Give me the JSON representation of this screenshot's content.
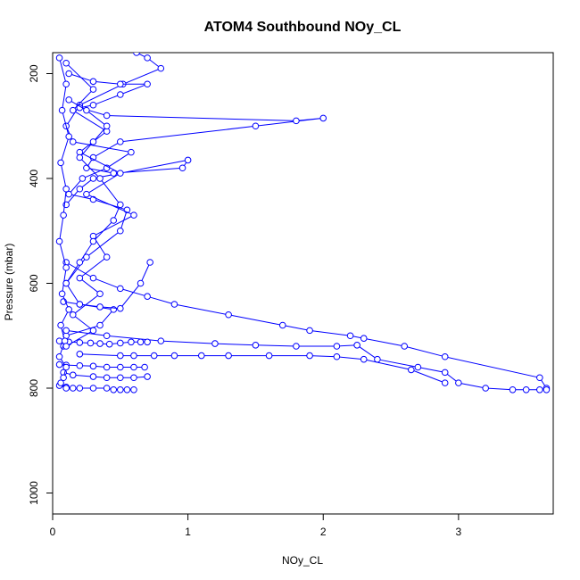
{
  "chart_data": {
    "type": "scatter",
    "title": "ATOM4 Southbound NOy_CL",
    "xlabel": "NOy_CL",
    "ylabel": "Pressure (mbar)",
    "xlim": [
      0,
      3.7
    ],
    "ylim": [
      1040,
      160
    ],
    "y_reversed": true,
    "x_ticks": [
      0,
      1,
      2,
      3
    ],
    "x_tick_labels": [
      "0",
      "1",
      "2",
      "3"
    ],
    "y_ticks": [
      200,
      400,
      600,
      800,
      1000
    ],
    "y_tick_labels": [
      "200",
      "400",
      "600",
      "800",
      "1000"
    ],
    "grid": false,
    "legend": "none",
    "series_color": "#0000FF",
    "marker": "open-circle",
    "connected": true,
    "series": [
      {
        "x": [
          0.62,
          0.7,
          0.8,
          0.52,
          0.2,
          0.1,
          0.15,
          0.58,
          0.4,
          0.22,
          0.12,
          0.3,
          0.55,
          0.5,
          0.25,
          0.1,
          0.2,
          0.45,
          0.35,
          0.1,
          0.08
        ],
        "y": [
          160,
          170,
          190,
          220,
          260,
          300,
          330,
          350,
          380,
          400,
          430,
          440,
          460,
          500,
          550,
          600,
          640,
          650,
          680,
          700,
          720
        ]
      },
      {
        "x": [
          0.12,
          0.3,
          0.5,
          0.7,
          0.5,
          0.3,
          0.2,
          0.4,
          1.8,
          2.0,
          1.5,
          0.5,
          0.3,
          0.25,
          0.45,
          0.96,
          1.0,
          0.3,
          0.2,
          0.1
        ],
        "y": [
          200,
          215,
          220,
          220,
          240,
          260,
          265,
          280,
          290,
          285,
          300,
          330,
          360,
          380,
          390,
          380,
          365,
          400,
          420,
          450
        ]
      },
      {
        "x": [
          0.1,
          0.3,
          0.5,
          0.7,
          0.9,
          1.3,
          1.7,
          1.9,
          2.2,
          2.3,
          2.6,
          2.9,
          3.6,
          3.65
        ],
        "y": [
          560,
          590,
          610,
          625,
          640,
          660,
          680,
          690,
          700,
          705,
          720,
          740,
          780,
          800
        ]
      },
      {
        "x": [
          0.1,
          0.4,
          0.8,
          1.2,
          1.5,
          1.8,
          2.1,
          2.25,
          2.4,
          2.7,
          2.9,
          3.0,
          3.2,
          3.4,
          3.5,
          3.6,
          3.65
        ],
        "y": [
          690,
          700,
          710,
          715,
          718,
          720,
          720,
          718,
          745,
          760,
          770,
          790,
          800,
          803,
          803,
          803,
          803
        ]
      },
      {
        "x": [
          0.2,
          0.5,
          0.6,
          0.75,
          0.9,
          1.1,
          1.3,
          1.6,
          1.9,
          2.1,
          2.3,
          2.65,
          2.9
        ],
        "y": [
          735,
          738,
          738,
          738,
          738,
          738,
          738,
          738,
          738,
          740,
          745,
          765,
          790
        ]
      },
      {
        "x": [
          0.05,
          0.12,
          0.2,
          0.28,
          0.35,
          0.42,
          0.5,
          0.58,
          0.65,
          0.7
        ],
        "y": [
          710,
          712,
          713,
          714,
          715,
          716,
          714,
          712,
          712,
          712
        ]
      },
      {
        "x": [
          0.05,
          0.1,
          0.2,
          0.3,
          0.4,
          0.5,
          0.6,
          0.68
        ],
        "y": [
          755,
          756,
          757,
          758,
          760,
          760,
          760,
          760
        ]
      },
      {
        "x": [
          0.05,
          0.1,
          0.15,
          0.2,
          0.3,
          0.4,
          0.45,
          0.5,
          0.55,
          0.6
        ],
        "y": [
          795,
          798,
          800,
          800,
          800,
          800,
          803,
          803,
          803,
          803
        ]
      },
      {
        "x": [
          0.08,
          0.15,
          0.3,
          0.4,
          0.5,
          0.6,
          0.7
        ],
        "y": [
          770,
          775,
          778,
          780,
          780,
          780,
          778
        ]
      },
      {
        "x": [
          0.08,
          0.2,
          0.35,
          0.5,
          0.65,
          0.72
        ],
        "y": [
          635,
          640,
          645,
          648,
          600,
          560
        ]
      },
      {
        "x": [
          0.05,
          0.1,
          0.07,
          0.12,
          0.06,
          0.1,
          0.08,
          0.05,
          0.1,
          0.07,
          0.12,
          0.06,
          0.09,
          0.05,
          0.1,
          0.08,
          0.06,
          0.1
        ],
        "y": [
          170,
          220,
          270,
          320,
          370,
          420,
          470,
          520,
          570,
          620,
          650,
          680,
          710,
          740,
          760,
          780,
          790,
          800
        ]
      },
      {
        "x": [
          0.1,
          0.3,
          0.15,
          0.4,
          0.2,
          0.5,
          0.25,
          0.6,
          0.3,
          0.4,
          0.2,
          0.35,
          0.15,
          0.3,
          0.1
        ],
        "y": [
          180,
          230,
          270,
          310,
          350,
          390,
          430,
          470,
          510,
          550,
          590,
          620,
          660,
          690,
          720
        ]
      },
      {
        "x": [
          0.12,
          0.25,
          0.4,
          0.3,
          0.2,
          0.35,
          0.5,
          0.45,
          0.3,
          0.2,
          0.1
        ],
        "y": [
          250,
          270,
          300,
          330,
          360,
          400,
          450,
          480,
          520,
          560,
          600
        ]
      }
    ]
  }
}
